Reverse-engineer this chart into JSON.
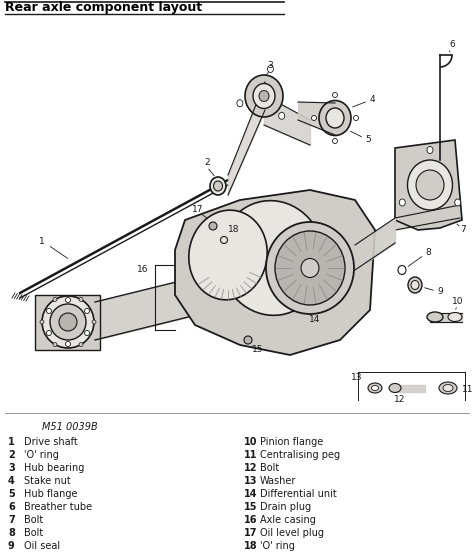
{
  "title": "Rear axle component layout",
  "figure_ref": "M51 0039B",
  "diagram_bg": "#ffffff",
  "legend_bg": "#e8e6e0",
  "title_color": "#000000",
  "title_fontsize": 9,
  "legend_items_left": [
    [
      "1",
      "Drive shaft"
    ],
    [
      "2",
      "'O' ring"
    ],
    [
      "3",
      "Hub bearing"
    ],
    [
      "4",
      "Stake nut"
    ],
    [
      "5",
      "Hub flange"
    ],
    [
      "6",
      "Breather tube"
    ],
    [
      "7",
      "Bolt"
    ],
    [
      "8",
      "Bolt"
    ],
    [
      "9",
      "Oil seal"
    ]
  ],
  "legend_items_right": [
    [
      "10",
      "Pinion flange"
    ],
    [
      "11",
      "Centralising peg"
    ],
    [
      "12",
      "Bolt"
    ],
    [
      "13",
      "Washer"
    ],
    [
      "14",
      "Differential unit"
    ],
    [
      "15",
      "Drain plug"
    ],
    [
      "16",
      "Axle casing"
    ],
    [
      "17",
      "Oil level plug"
    ],
    [
      "18",
      "'O' ring"
    ]
  ],
  "line_color": "#1a1a1a",
  "gray_fill": "#d0cdc8",
  "light_fill": "#e8e6e0",
  "mid_fill": "#b8b5b0"
}
